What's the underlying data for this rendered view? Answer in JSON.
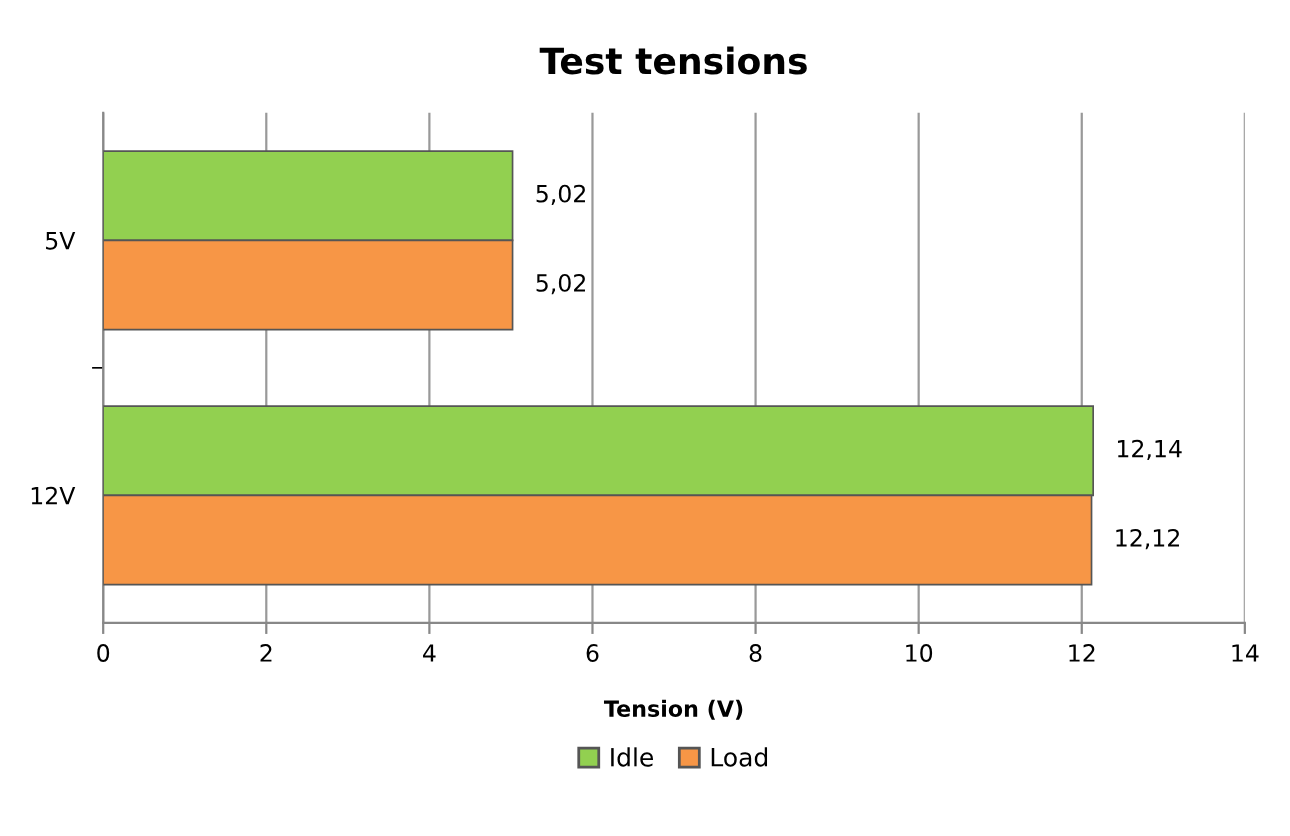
{
  "chart_data": {
    "type": "bar",
    "orientation": "horizontal",
    "title": "Test tensions",
    "xlabel": "Tension (V)",
    "categories": [
      "5V",
      "12V"
    ],
    "series": [
      {
        "name": "Idle",
        "color": "#92d050",
        "values": [
          5.02,
          12.14
        ],
        "value_labels": [
          "5,02",
          "12,14"
        ]
      },
      {
        "name": "Load",
        "color": "#f79646",
        "values": [
          5.02,
          12.12
        ],
        "value_labels": [
          "5,02",
          "12,12"
        ]
      }
    ],
    "xlim": [
      0,
      14
    ],
    "xticks": [
      0,
      2,
      4,
      6,
      8,
      10,
      12,
      14
    ],
    "grid": "x",
    "legend": "bottom"
  }
}
